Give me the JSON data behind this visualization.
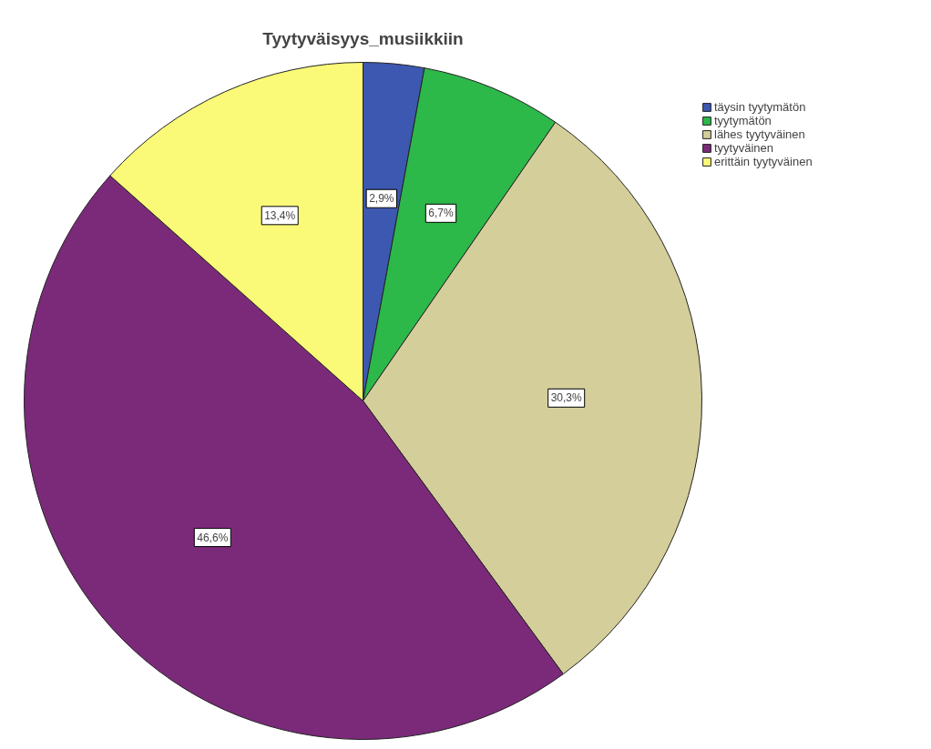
{
  "chart_data": {
    "type": "pie",
    "title": "Tyytyväisyys_musiikkiin",
    "categories": [
      "täysin tyytymätön",
      "tyytymätön",
      "lähes tyytyväinen",
      "tyytyväinen",
      "erittäin tyytyväinen"
    ],
    "values": [
      2.9,
      6.7,
      30.3,
      46.6,
      13.4
    ],
    "colors": [
      "#3c58b0",
      "#2db84a",
      "#d4ce9a",
      "#7b2a7a",
      "#fafa78"
    ],
    "value_labels": [
      "2,9%",
      "6,7%",
      "30,3%",
      "46,6%",
      "13,4%"
    ],
    "legend": "top right"
  }
}
